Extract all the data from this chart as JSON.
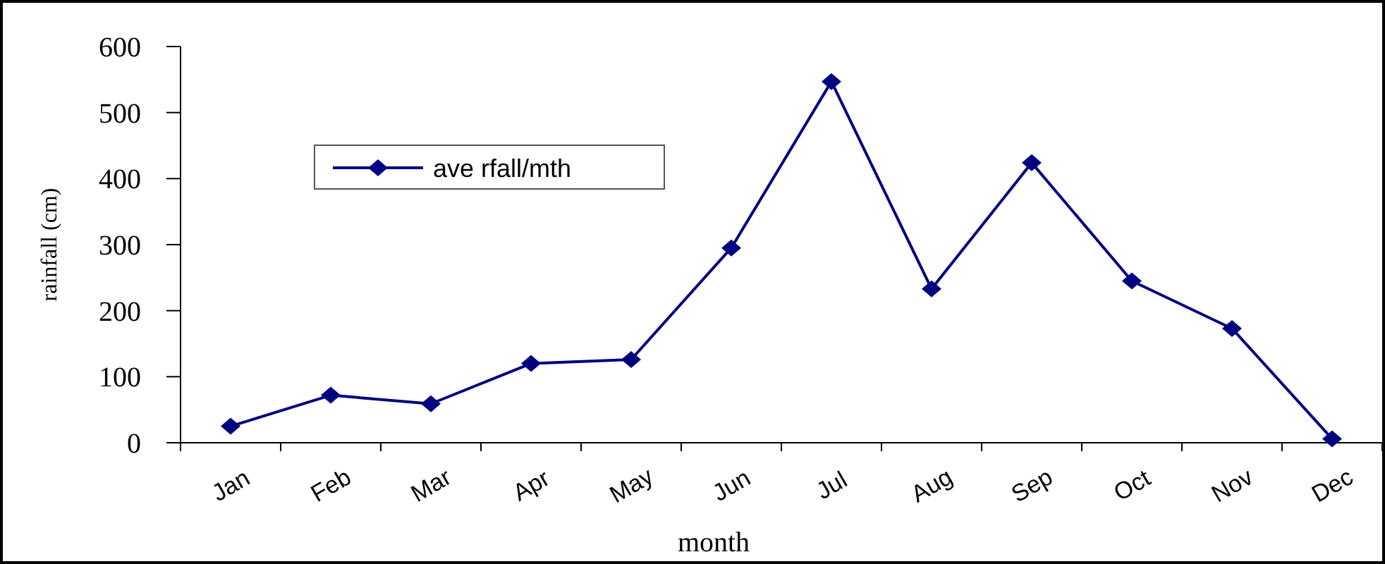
{
  "chart_data": {
    "type": "line",
    "xlabel": "month",
    "ylabel": "rainfall (cm)",
    "categories": [
      "Jan",
      "Feb",
      "Mar",
      "Apr",
      "May",
      "Jun",
      "Jul",
      "Aug",
      "Sep",
      "Oct",
      "Nov",
      "Dec"
    ],
    "series": [
      {
        "name": "ave rfall/mth",
        "color": "#000080",
        "values": [
          25,
          72,
          59,
          120,
          126,
          295,
          547,
          233,
          424,
          245,
          173,
          6
        ]
      }
    ],
    "ylim": [
      0,
      600
    ],
    "yticks": [
      0,
      100,
      200,
      300,
      400,
      500,
      600
    ],
    "grid": false,
    "legend": "top left",
    "marker": "diamond",
    "line_style": "solid"
  }
}
